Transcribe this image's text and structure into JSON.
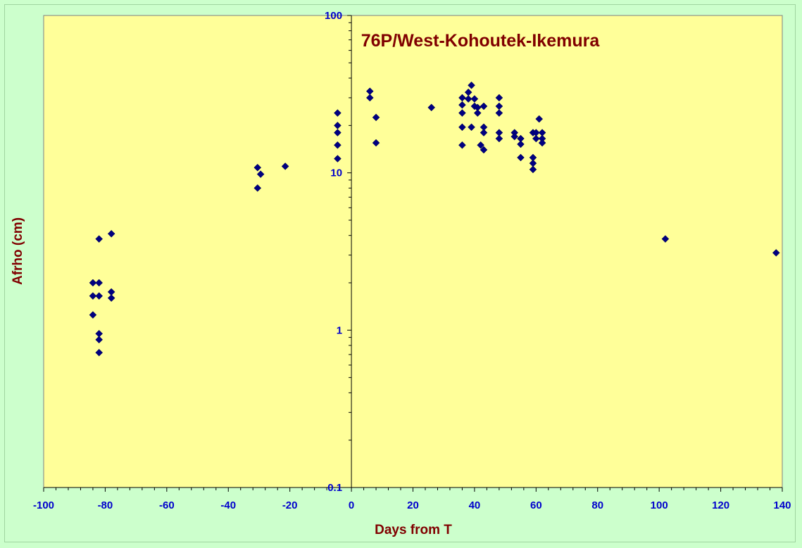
{
  "chart_data": {
    "type": "scatter",
    "title": "76P/West-Kohoutek-Ikemura",
    "xlabel": "Days from T",
    "ylabel": "Afrho (cm)",
    "xlim": [
      -100,
      140
    ],
    "ylim": [
      0.1,
      100
    ],
    "y_scale": "log",
    "x_ticks": [
      "-100",
      "-80",
      "-60",
      "-40",
      "-20",
      "0",
      "20",
      "40",
      "60",
      "80",
      "100",
      "120",
      "140"
    ],
    "y_ticks": [
      "0.1",
      "1",
      "10",
      "100"
    ],
    "grid": false,
    "legend": "none",
    "series": [
      {
        "points": [
          [
            -84,
            2.0
          ],
          [
            -84,
            1.65
          ],
          [
            -84,
            1.25
          ],
          [
            -82,
            3.8
          ],
          [
            -82,
            2.0
          ],
          [
            -82,
            1.65
          ],
          [
            -82,
            0.95
          ],
          [
            -82,
            0.87
          ],
          [
            -82,
            0.72
          ],
          [
            -78,
            4.1
          ],
          [
            -78,
            1.75
          ],
          [
            -78,
            1.6
          ],
          [
            -30.5,
            10.8
          ],
          [
            -30.5,
            8.0
          ],
          [
            -29.5,
            9.8
          ],
          [
            -21.5,
            11.0
          ],
          [
            -4.5,
            24.0
          ],
          [
            -4.5,
            20.0
          ],
          [
            -4.5,
            18.0
          ],
          [
            -4.5,
            15.0
          ],
          [
            -4.5,
            12.3
          ],
          [
            6,
            33.0
          ],
          [
            6,
            30.0
          ],
          [
            8,
            22.5
          ],
          [
            8,
            15.5
          ],
          [
            26,
            26.0
          ],
          [
            36,
            30.0
          ],
          [
            36,
            27.0
          ],
          [
            36,
            24.0
          ],
          [
            36,
            19.5
          ],
          [
            36,
            15.0
          ],
          [
            38,
            32.5
          ],
          [
            38,
            29.5
          ],
          [
            39,
            36.0
          ],
          [
            39,
            19.5
          ],
          [
            40,
            29.5
          ],
          [
            40,
            26.5
          ],
          [
            41,
            26.0
          ],
          [
            41,
            24.0
          ],
          [
            42,
            15.0
          ],
          [
            43,
            26.5
          ],
          [
            43,
            19.5
          ],
          [
            43,
            18.0
          ],
          [
            43,
            14.0
          ],
          [
            48,
            30.0
          ],
          [
            48,
            26.5
          ],
          [
            48,
            24.0
          ],
          [
            48,
            18.0
          ],
          [
            48,
            16.5
          ],
          [
            53,
            18.0
          ],
          [
            53,
            17.0
          ],
          [
            55,
            16.5
          ],
          [
            55,
            15.2
          ],
          [
            55,
            12.5
          ],
          [
            59,
            18.0
          ],
          [
            59,
            12.5
          ],
          [
            59,
            11.5
          ],
          [
            59,
            10.5
          ],
          [
            60,
            18.0
          ],
          [
            60,
            16.5
          ],
          [
            61,
            22.0
          ],
          [
            62,
            18.0
          ],
          [
            62,
            16.5
          ],
          [
            62,
            15.5
          ],
          [
            102,
            3.8
          ],
          [
            138,
            3.1
          ]
        ]
      }
    ],
    "colors": {
      "background": "#ccffcc",
      "plot_area": "#ffff99",
      "marker": "#000080",
      "title": "#800000",
      "tick_labels": "#0000cc"
    }
  }
}
